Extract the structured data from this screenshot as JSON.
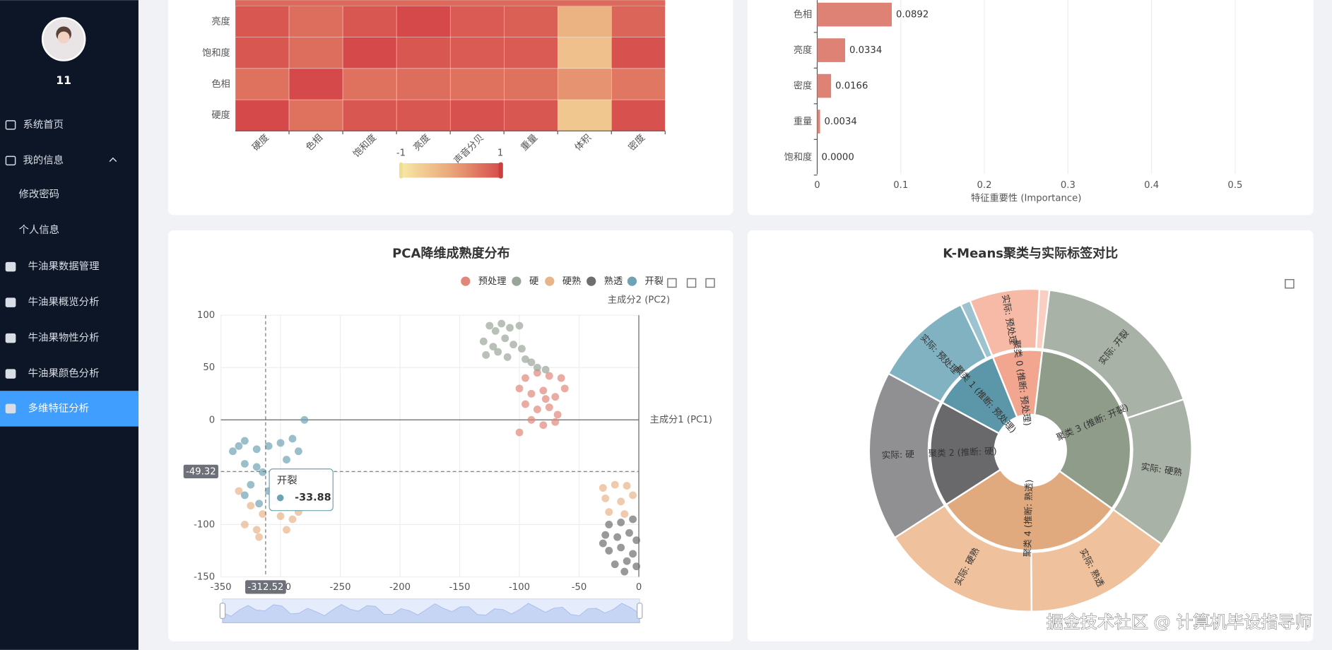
{
  "sidebar": {
    "user": "11",
    "menu": [
      {
        "label": "系统首页"
      },
      {
        "label": "我的信息"
      },
      {
        "label": "修改密码"
      },
      {
        "label": "个人信息"
      },
      {
        "label": "牛油果数据管理"
      },
      {
        "label": "牛油果概览分析"
      },
      {
        "label": "牛油果物性分析"
      },
      {
        "label": "牛油果颜色分析"
      },
      {
        "label": "多维特征分析",
        "active": true
      }
    ]
  },
  "chart_data": [
    {
      "type": "heatmap",
      "x_categories": [
        "硬度",
        "色相",
        "饱和度",
        "亮度",
        "声音分贝",
        "重量",
        "体积",
        "密度"
      ],
      "y_categories": [
        "亮度",
        "饱和度",
        "色相",
        "硬度"
      ],
      "values": [
        [
          0.85,
          0.6,
          0.85,
          1,
          0.8,
          0.75,
          -0.2,
          0.7
        ],
        [
          0.85,
          0.6,
          1,
          0.85,
          0.8,
          0.8,
          -0.4,
          0.9
        ],
        [
          0.55,
          1,
          0.55,
          0.6,
          0.55,
          0.55,
          0.2,
          0.5
        ],
        [
          1,
          0.55,
          0.85,
          0.85,
          0.9,
          0.85,
          -0.5,
          0.9
        ]
      ],
      "visual_map": {
        "min": -1,
        "max": 1,
        "colors": [
          "#f7e9a5",
          "#e9a579",
          "#d5494a"
        ]
      }
    },
    {
      "type": "bar",
      "orientation": "horizontal",
      "categories": [
        "色相",
        "亮度",
        "密度",
        "重量",
        "饱和度"
      ],
      "values": [
        0.0892,
        0.0334,
        0.0166,
        0.0034,
        0
      ],
      "value_labels": [
        "0.0892",
        "0.0334",
        "0.0166",
        "0.0034",
        "0.0000"
      ],
      "color": "#df8276",
      "x_label": "特征重要性 (Importance)",
      "xlim": [
        0,
        0.5
      ],
      "xticks": [
        0,
        0.1,
        0.2,
        0.3,
        0.4,
        0.5
      ],
      "grid": true
    },
    {
      "type": "scatter",
      "title": "PCA降维成熟度分布",
      "x_label": "主成分1 (PC1)",
      "y_label": "主成分2 (PC2)",
      "xlim": [
        -350,
        0
      ],
      "ylim": [
        -150,
        100
      ],
      "xticks": [
        -350,
        -300,
        -250,
        -200,
        -150,
        -100,
        -50,
        0
      ],
      "yticks": [
        -150,
        -100,
        -50,
        0,
        50,
        100
      ],
      "grid": true,
      "series": [
        {
          "name": "预处理",
          "color": "#e0877a",
          "x": [
            -95,
            -85,
            -75,
            -65,
            -100,
            -90,
            -80,
            -70,
            -62,
            -95,
            -85,
            -75,
            -68,
            -90,
            -80,
            -70,
            -100,
            -78
          ],
          "values": [
            40,
            45,
            42,
            40,
            30,
            25,
            28,
            22,
            30,
            15,
            10,
            12,
            5,
            0,
            -5,
            -2,
            -12,
            20
          ]
        },
        {
          "name": "硬",
          "color": "#9aa59a",
          "x": [
            -125,
            -120,
            -115,
            -108,
            -100,
            -130,
            -122,
            -112,
            -105,
            -98,
            -128,
            -118,
            -110,
            -95,
            -90,
            -85,
            -78
          ],
          "values": [
            90,
            85,
            92,
            88,
            90,
            75,
            70,
            78,
            72,
            68,
            62,
            65,
            60,
            58,
            55,
            50,
            48
          ]
        },
        {
          "name": "硬熟",
          "color": "#e8b48a",
          "x": [
            -30,
            -20,
            -10,
            -28,
            -15,
            -5,
            -25,
            -12,
            -335,
            -325,
            -315,
            -300,
            -290,
            -285,
            -320,
            -330,
            -318,
            -295
          ],
          "values": [
            -65,
            -62,
            -63,
            -75,
            -78,
            -72,
            -88,
            -90,
            -68,
            -82,
            -90,
            -92,
            -95,
            -88,
            -105,
            -100,
            -112,
            -105
          ]
        },
        {
          "name": "熟透",
          "color": "#6e6e70",
          "x": [
            -25,
            -15,
            -5,
            -28,
            -18,
            -8,
            -2,
            -25,
            -15,
            -5,
            -20,
            -10,
            -2,
            -12,
            -30
          ],
          "values": [
            -100,
            -98,
            -95,
            -110,
            -112,
            -108,
            -115,
            -125,
            -122,
            -128,
            -138,
            -135,
            -140,
            -145,
            -118
          ]
        },
        {
          "name": "开裂",
          "color": "#6fa3b3",
          "x": [
            -335,
            -330,
            -320,
            -310,
            -300,
            -290,
            -285,
            -295,
            -280,
            -340,
            -330,
            -320,
            -315,
            -305,
            -325,
            -310,
            -330,
            -318,
            -305
          ],
          "values": [
            -25,
            -20,
            -28,
            -25,
            -22,
            -18,
            -30,
            -38,
            0,
            -30,
            -42,
            -45,
            -50,
            -55,
            -62,
            -68,
            -72,
            -80,
            -78
          ]
        }
      ],
      "axis_pointer": {
        "x": -312.52,
        "y": -49.32
      },
      "tooltip": {
        "series": "开裂",
        "value": -33.88
      }
    },
    {
      "type": "sunburst",
      "title": "K-Means聚类与实际标签对比",
      "nodes": [
        {
          "name": "聚类 0 (推断: 预处理)",
          "color": "#f2a58f",
          "value": 8,
          "children": [
            {
              "name": "实际: 预处理",
              "color": "#f6baa7",
              "value": 7
            },
            {
              "name": null,
              "color": "#f8cfc2",
              "value": 1
            }
          ]
        },
        {
          "name": "聚类 3 (推断: 开裂)",
          "color": "#8f9c8a",
          "value": 33,
          "children": [
            {
              "name": "实际: 开裂",
              "color": "#a9b2a6",
              "value": 18
            },
            {
              "name": "实际: 硬熟",
              "color": "#a9b2a6",
              "value": 15
            }
          ]
        },
        {
          "name": "聚类 4 (推断: 熟透)",
          "color": "#e0aa7e",
          "value": 31,
          "children": [
            {
              "name": "实际: 熟透",
              "color": "#efc19c",
              "value": 15
            },
            {
              "name": "实际: 硬熟",
              "color": "#efc19c",
              "value": 16
            }
          ]
        },
        {
          "name": "聚类 2 (推断: 硬)",
          "color": "#69696c",
          "value": 17,
          "children": [
            {
              "name": "实际: 硬",
              "color": "#909093",
              "value": 17
            }
          ]
        },
        {
          "name": "聚类 1 (推断: 预处理)",
          "color": "#5b97a8",
          "value": 11,
          "children": [
            {
              "name": "实际: 预处理",
              "color": "#80b2c1",
              "value": 10
            },
            {
              "name": null,
              "color": "#9cc3cf",
              "value": 1
            }
          ]
        }
      ]
    }
  ],
  "watermark": "掘金技术社区 @ 计算机毕设指导师"
}
